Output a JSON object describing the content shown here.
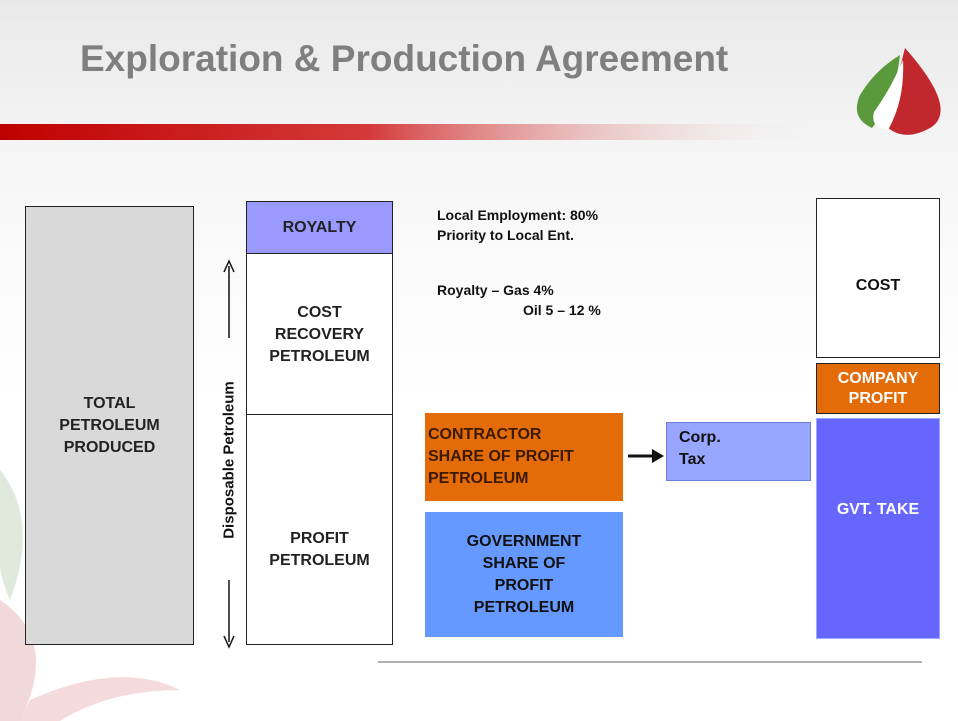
{
  "title": "Exploration & Production Agreement",
  "total": [
    "TOTAL",
    "PETROLEUM",
    "PRODUCED"
  ],
  "royalty": "ROYALTY",
  "cost_recovery": [
    "COST",
    "RECOVERY",
    "PETROLEUM"
  ],
  "profit_petroleum": [
    "PROFIT",
    "PETROLEUM"
  ],
  "arrow_label": "Disposable Petroleum",
  "notes": [
    "Local Employment: 80%",
    "Priority to Local Ent.",
    "Royalty – Gas 4%",
    "Oil 5 – 12 %"
  ],
  "contractor_share": [
    "CONTRACTOR",
    "SHARE OF PROFIT",
    "PETROLEUM"
  ],
  "government_share": [
    "GOVERNMENT",
    "SHARE OF",
    "PROFIT",
    "PETROLEUM"
  ],
  "corp_tax": [
    "Corp.",
    "Tax"
  ],
  "cost": "COST",
  "company_profit": [
    "COMPANY",
    "PROFIT"
  ],
  "gvt_take": "GVT. TAKE"
}
